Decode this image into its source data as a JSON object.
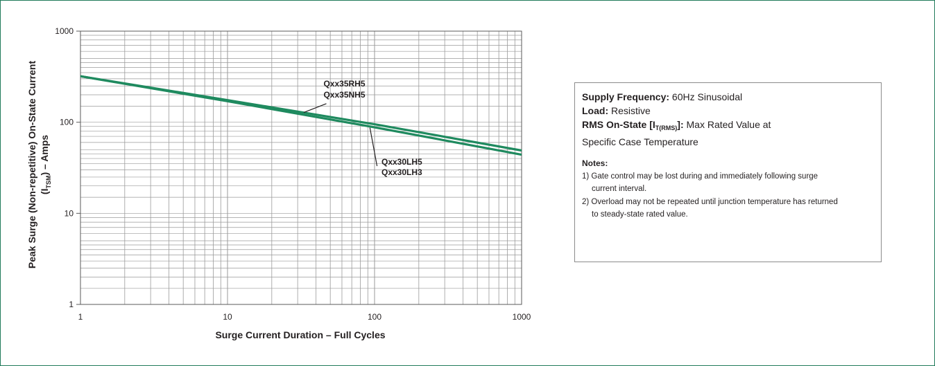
{
  "chart_data": {
    "type": "line",
    "title": "",
    "xlabel": "Surge Current Duration – Full Cycles",
    "ylabel_main": "Peak Surge (Non-repetitive) On-State Current",
    "ylabel_sub_prefix": "(I",
    "ylabel_sub_subscript": "TSM",
    "ylabel_sub_suffix": ") – Amps",
    "x_scale": "log",
    "y_scale": "log",
    "xlim": [
      1,
      1000
    ],
    "ylim": [
      1,
      1000
    ],
    "x_ticks": [
      "1",
      "10",
      "100",
      "1000"
    ],
    "y_ticks": [
      "1000",
      "100",
      "10",
      "1"
    ],
    "grid": true,
    "line_color": "#1f8a5f",
    "series": [
      {
        "name": "Qxx35RH5 / Qxx35NH5",
        "x": [
          1,
          10,
          100,
          1000
        ],
        "y": [
          320,
          175,
          95,
          49
        ]
      },
      {
        "name": "Qxx30LH5 / Qxx30LH3",
        "x": [
          1,
          10,
          100,
          1000
        ],
        "y": [
          320,
          170,
          88,
          44
        ]
      }
    ],
    "annotations": [
      {
        "lines": [
          "Qxx35RH5",
          "Qxx35NH5"
        ]
      },
      {
        "lines": [
          "Qxx30LH5",
          "Qxx30LH3"
        ]
      }
    ]
  },
  "notes_box": {
    "supply_label": "Supply Frequency:",
    "supply_value": "60Hz Sinusoidal",
    "load_label": "Load:",
    "load_value": "Resistive",
    "rms_label_prefix": "RMS On-State [I",
    "rms_label_sub": "T(RMS)",
    "rms_label_suffix": "]:",
    "rms_value": "Max Rated Value at",
    "rms_value_cont": "Specific Case Temperature",
    "notes_heading": "Notes:",
    "note1_a": "1) Gate control may be lost during and immediately following surge",
    "note1_b": "current interval.",
    "note2_a": "2) Overload may not be repeated until junction temperature has returned",
    "note2_b": "to steady-state rated value."
  }
}
